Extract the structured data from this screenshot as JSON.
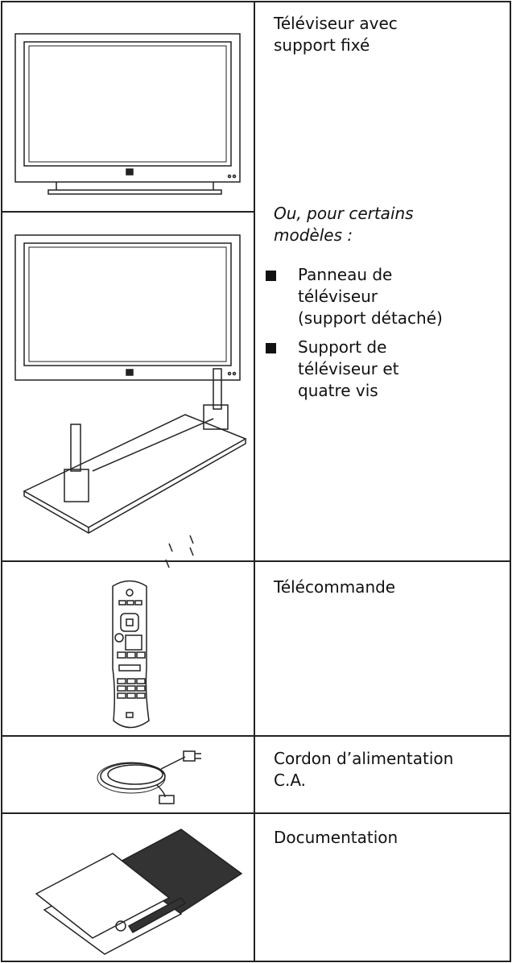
{
  "table": {
    "rows": [
      {
        "description": [
          "Téléviseur avec",
          "support fixé"
        ],
        "alternative": {
          "intro": [
            "Ou, pour certains",
            "modèles :"
          ],
          "bullets": [
            [
              "Panneau de",
              "téléviseur",
              "(support détaché)"
            ],
            [
              "Support de",
              "téléviseur et",
              "quatre vis"
            ]
          ]
        }
      },
      {
        "description": [
          "Télécommande"
        ]
      },
      {
        "description": [
          "Cordon d’alimentation",
          "C.A."
        ]
      },
      {
        "description": [
          "Documentation"
        ]
      }
    ]
  }
}
